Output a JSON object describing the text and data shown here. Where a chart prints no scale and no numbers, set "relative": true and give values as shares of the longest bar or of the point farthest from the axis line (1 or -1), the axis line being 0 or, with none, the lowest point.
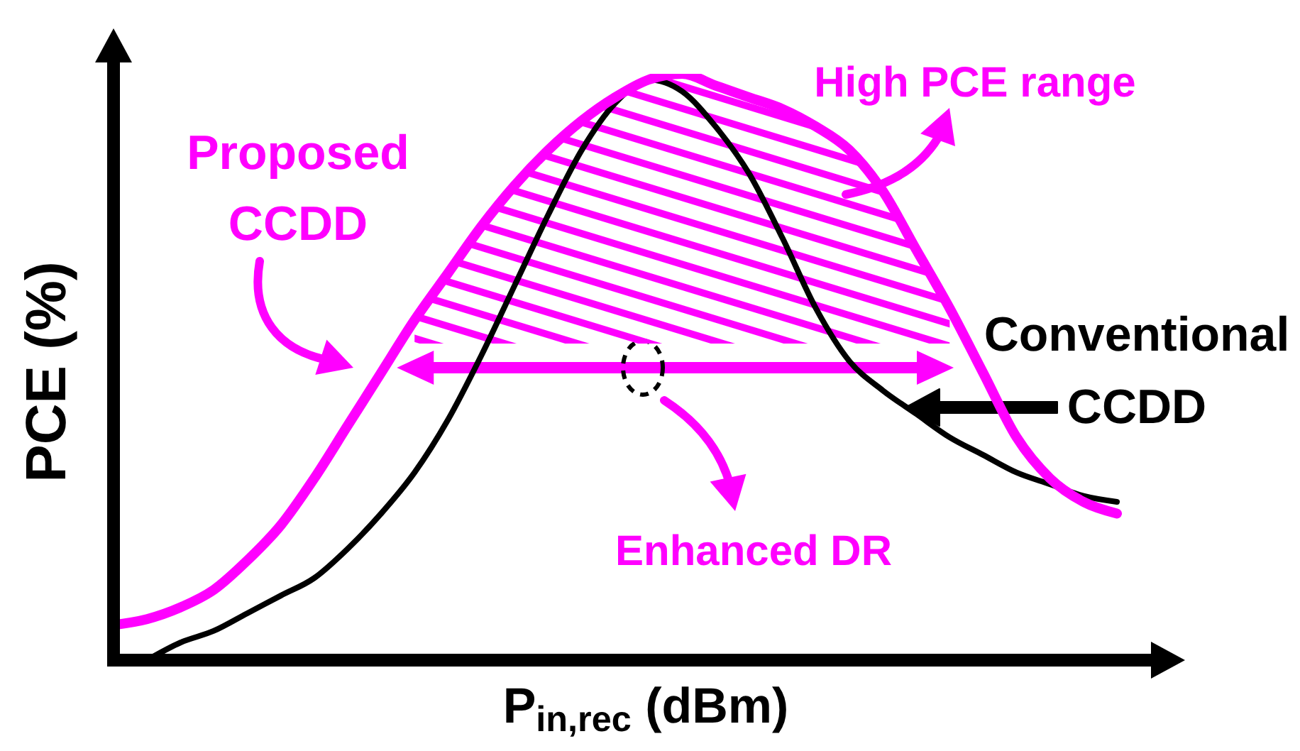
{
  "chart_data": {
    "type": "line",
    "xlabel": "P$_{in,rec}$ (dBm)",
    "ylabel": "PCE (%)",
    "relative": true,
    "marker": "none",
    "categories": [
      null,
      null,
      null,
      null,
      null,
      null,
      null,
      null,
      null,
      null,
      null,
      null,
      null,
      null,
      null,
      null,
      null,
      null,
      null,
      null,
      null,
      null,
      null,
      null,
      null,
      null,
      null,
      null,
      null,
      null,
      null
    ],
    "series": [
      {
        "name": "Proposed CCDD",
        "color": "#ff00ff",
        "values": [
          0.06,
          0.07,
          0.09,
          0.12,
          0.17,
          0.23,
          0.31,
          0.4,
          0.49,
          0.58,
          0.66,
          0.74,
          0.81,
          0.87,
          0.92,
          0.96,
          0.99,
          1.0,
          0.98,
          0.96,
          0.94,
          0.91,
          0.87,
          0.8,
          0.7,
          0.6,
          0.49,
          0.38,
          0.31,
          0.27,
          0.25
        ],
        "lower": [
          null,
          null,
          null,
          null,
          null,
          null,
          null,
          null,
          null,
          0.54,
          0.54,
          0.54,
          0.54,
          0.54,
          0.54,
          0.54,
          0.54,
          0.54,
          0.54,
          0.54,
          0.54,
          0.54,
          0.54,
          0.54,
          0.54,
          0.54,
          null,
          null,
          null,
          null,
          null
        ],
        "upper": [
          null,
          null,
          null,
          null,
          null,
          null,
          null,
          null,
          null,
          0.58,
          0.66,
          0.74,
          0.81,
          0.87,
          0.92,
          0.96,
          0.99,
          1.0,
          0.98,
          0.96,
          0.94,
          0.91,
          0.87,
          0.8,
          0.7,
          0.6,
          null,
          null,
          null,
          null,
          null
        ]
      },
      {
        "name": "Conventional CCDD",
        "color": "#000000",
        "values": [
          null,
          0.0,
          0.03,
          0.05,
          0.08,
          0.11,
          0.14,
          0.19,
          0.25,
          0.32,
          0.41,
          0.52,
          0.64,
          0.76,
          0.87,
          0.95,
          0.99,
          0.97,
          0.91,
          0.83,
          0.72,
          0.6,
          0.51,
          0.46,
          0.42,
          0.38,
          0.35,
          0.32,
          0.3,
          0.28,
          0.27
        ]
      }
    ],
    "annotations": [
      "High PCE range",
      "Enhanced DR"
    ]
  }
}
